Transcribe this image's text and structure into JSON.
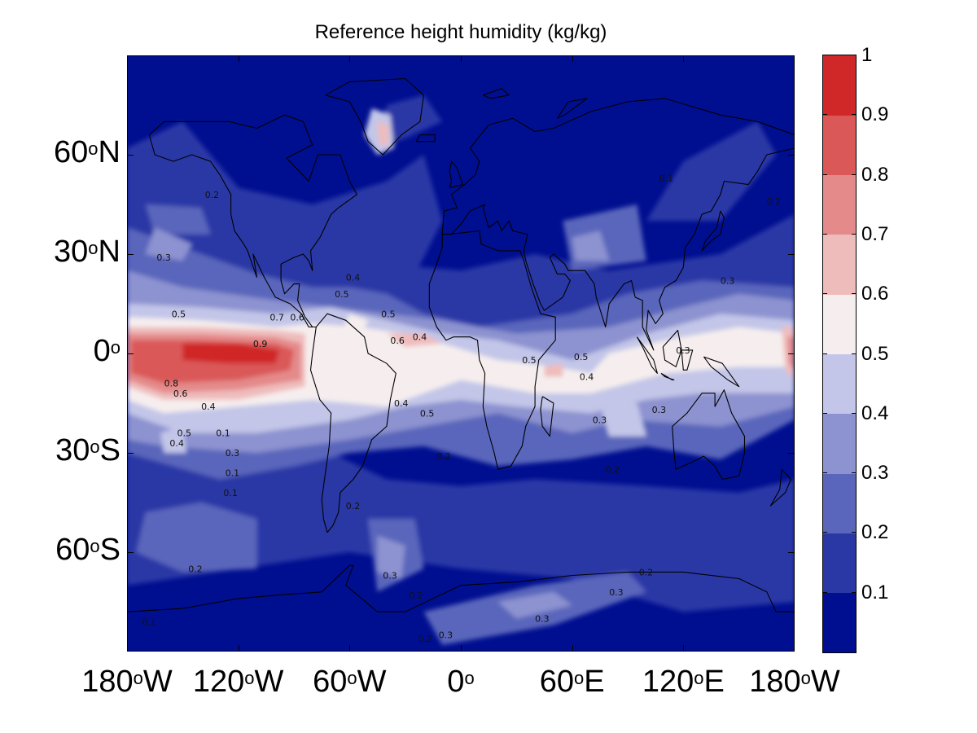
{
  "title": "Reference height humidity (kg/kg)",
  "map": {
    "projection": "equirectangular",
    "lat_range": [
      -90,
      90
    ],
    "lon_range": [
      -180,
      180
    ],
    "lat_labels": [
      {
        "lat": 60,
        "deg": "60",
        "sup": "o",
        "hem": "N"
      },
      {
        "lat": 30,
        "deg": "30",
        "sup": "o",
        "hem": "N"
      },
      {
        "lat": 0,
        "deg": "0",
        "sup": "o",
        "hem": ""
      },
      {
        "lat": -30,
        "deg": "30",
        "sup": "o",
        "hem": "S"
      },
      {
        "lat": -60,
        "deg": "60",
        "sup": "o",
        "hem": "S"
      }
    ],
    "lon_labels": [
      {
        "lon": -180,
        "deg": "180",
        "sup": "o",
        "hem": "W"
      },
      {
        "lon": -120,
        "deg": "120",
        "sup": "o",
        "hem": "W"
      },
      {
        "lon": -60,
        "deg": "60",
        "sup": "o",
        "hem": "W"
      },
      {
        "lon": 0,
        "deg": "0",
        "sup": "o",
        "hem": ""
      },
      {
        "lon": 60,
        "deg": "60",
        "sup": "o",
        "hem": "E"
      },
      {
        "lon": 120,
        "deg": "120",
        "sup": "o",
        "hem": "E"
      },
      {
        "lon": 180,
        "deg": "180",
        "sup": "o",
        "hem": "W"
      }
    ],
    "contour_labels": [
      {
        "lon": -103,
        "lat": 10,
        "text": "0.7"
      },
      {
        "lon": -92,
        "lat": 10,
        "text": "0.6"
      },
      {
        "lon": -156,
        "lat": 11,
        "text": "0.5"
      },
      {
        "lon": -112,
        "lat": 2,
        "text": "0.9"
      },
      {
        "lon": -160,
        "lat": -10,
        "text": "0.8"
      },
      {
        "lon": -155,
        "lat": -13,
        "text": "0.6"
      },
      {
        "lon": -140,
        "lat": -17,
        "text": "0.4"
      },
      {
        "lon": -153,
        "lat": -25,
        "text": "0.5"
      },
      {
        "lon": -157,
        "lat": -28,
        "text": "0.4"
      },
      {
        "lon": -127,
        "lat": -31,
        "text": "0.3"
      },
      {
        "lon": -127,
        "lat": -37,
        "text": "0.1"
      },
      {
        "lon": -128,
        "lat": -43,
        "text": "0.1"
      },
      {
        "lon": -147,
        "lat": -66,
        "text": "0.2"
      },
      {
        "lon": -172,
        "lat": -82,
        "text": "0.1"
      },
      {
        "lon": -164,
        "lat": 28,
        "text": "0.3"
      },
      {
        "lon": -138,
        "lat": 47,
        "text": "0.2"
      },
      {
        "lon": -62,
        "lat": 22,
        "text": "0.4"
      },
      {
        "lon": -68,
        "lat": 17,
        "text": "0.5"
      },
      {
        "lon": -43,
        "lat": 11,
        "text": "0.5"
      },
      {
        "lon": -38,
        "lat": 3,
        "text": "0.6"
      },
      {
        "lon": -26,
        "lat": 4,
        "text": "0.4"
      },
      {
        "lon": -36,
        "lat": -16,
        "text": "0.4"
      },
      {
        "lon": -22,
        "lat": -19,
        "text": "0.5"
      },
      {
        "lon": -13,
        "lat": -32,
        "text": "0.2"
      },
      {
        "lon": 33,
        "lat": -3,
        "text": "0.5"
      },
      {
        "lon": 64,
        "lat": -8,
        "text": "0.4"
      },
      {
        "lon": 61,
        "lat": -2,
        "text": "0.5"
      },
      {
        "lon": 71,
        "lat": -21,
        "text": "0.3"
      },
      {
        "lon": 78,
        "lat": -36,
        "text": "0.2"
      },
      {
        "lon": 103,
        "lat": -18,
        "text": "0.3"
      },
      {
        "lon": 116,
        "lat": 0,
        "text": "0.3"
      },
      {
        "lon": 140,
        "lat": 21,
        "text": "0.3"
      },
      {
        "lon": 165,
        "lat": 45,
        "text": "0.2"
      },
      {
        "lon": 107,
        "lat": 52,
        "text": "0.1"
      },
      {
        "lon": -132,
        "lat": -25,
        "text": "0.1"
      },
      {
        "lon": -62,
        "lat": -47,
        "text": "0.2"
      },
      {
        "lon": -42,
        "lat": -68,
        "text": "0.3"
      },
      {
        "lon": -28,
        "lat": -74,
        "text": "0.2"
      },
      {
        "lon": -12,
        "lat": -86,
        "text": "0.3"
      },
      {
        "lon": -23,
        "lat": -87,
        "text": "0.2"
      },
      {
        "lon": 40,
        "lat": -81,
        "text": "0.3"
      },
      {
        "lon": 80,
        "lat": -73,
        "text": "0.3"
      },
      {
        "lon": 96,
        "lat": -67,
        "text": "0.2"
      }
    ]
  },
  "colorbar": {
    "ticks": [
      "0.1",
      "0.2",
      "0.3",
      "0.4",
      "0.5",
      "0.6",
      "0.7",
      "0.8",
      "0.9",
      "1"
    ],
    "tick_values": [
      0.1,
      0.2,
      0.3,
      0.4,
      0.5,
      0.6,
      0.7,
      0.8,
      0.9,
      1.0
    ],
    "range": [
      0.0,
      1.0
    ],
    "levels": [
      {
        "min": 0.0,
        "max": 0.1,
        "color": "#000f90"
      },
      {
        "min": 0.1,
        "max": 0.2,
        "color": "#2a38a6"
      },
      {
        "min": 0.2,
        "max": 0.3,
        "color": "#5a66bb"
      },
      {
        "min": 0.3,
        "max": 0.4,
        "color": "#8d93d0"
      },
      {
        "min": 0.4,
        "max": 0.5,
        "color": "#c3c6e8"
      },
      {
        "min": 0.5,
        "max": 0.6,
        "color": "#f6eeee"
      },
      {
        "min": 0.6,
        "max": 0.7,
        "color": "#efbcbc"
      },
      {
        "min": 0.7,
        "max": 0.8,
        "color": "#e48a8a"
      },
      {
        "min": 0.8,
        "max": 0.9,
        "color": "#da5858"
      },
      {
        "min": 0.9,
        "max": 1.0,
        "color": "#d02828"
      }
    ]
  }
}
